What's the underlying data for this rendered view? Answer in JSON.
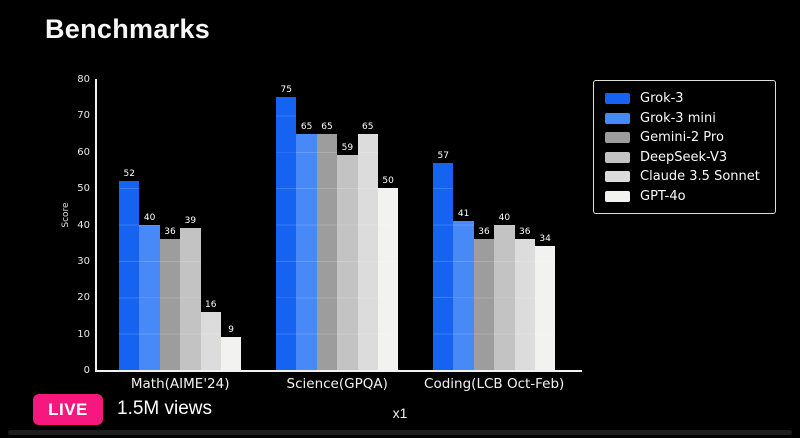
{
  "header": {
    "title": "Benchmarks"
  },
  "chart_data": {
    "type": "bar",
    "title": "Benchmarks",
    "xlabel": "",
    "ylabel": "Score",
    "ylim": [
      0,
      80
    ],
    "yticks": [
      0,
      10,
      20,
      30,
      40,
      50,
      60,
      70,
      80
    ],
    "grid": "faint horizontal gridlines every 10, visible across bars",
    "legend_position": "upper right",
    "background": "#000000",
    "categories": [
      "Math(AIME'24)",
      "Science(GPQA)",
      "Coding(LCB Oct-Feb)"
    ],
    "series": [
      {
        "name": "Grok-3",
        "color": "#1663f2",
        "values": [
          52,
          75,
          57
        ]
      },
      {
        "name": "Grok-3 mini",
        "color": "#4789f7",
        "values": [
          40,
          65,
          41
        ]
      },
      {
        "name": "Gemini-2 Pro",
        "color": "#9d9d9d",
        "values": [
          36,
          65,
          36
        ]
      },
      {
        "name": "DeepSeek-V3",
        "color": "#c3c3c3",
        "values": [
          39,
          59,
          40
        ]
      },
      {
        "name": "Claude 3.5 Sonnet",
        "color": "#dcdcdc",
        "values": [
          16,
          65,
          36
        ]
      },
      {
        "name": "GPT-4o",
        "color": "#f2f2f1",
        "values": [
          9,
          50,
          34
        ]
      }
    ]
  },
  "player_overlay": {
    "live_badge": "LIVE",
    "live_color": "#f6187f",
    "views": "1.5M views",
    "playback_speed": "x1"
  }
}
